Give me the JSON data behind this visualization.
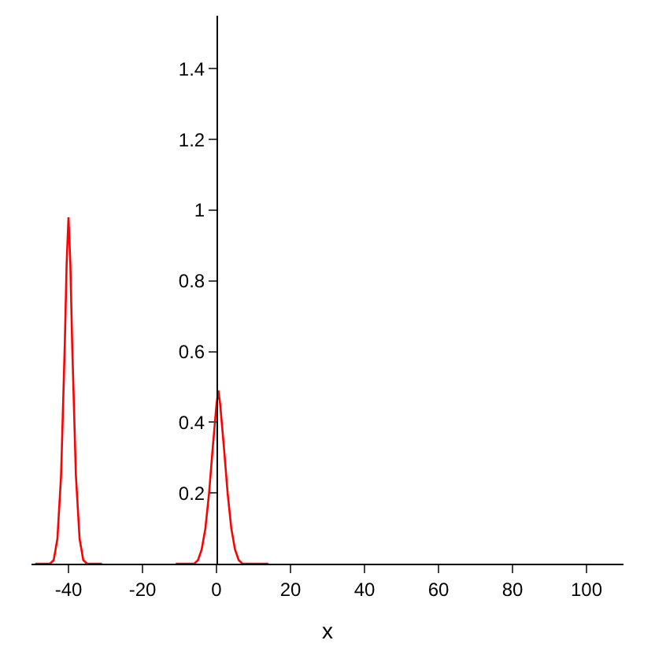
{
  "chart_data": {
    "type": "line",
    "xlabel": "x",
    "x": [
      -49,
      -45,
      -44,
      -43,
      -42,
      -41,
      -40.5,
      -40,
      -39.5,
      -39,
      -38,
      -37,
      -36,
      -35,
      -31,
      -20,
      -11,
      -6,
      -5,
      -4,
      -3,
      -2,
      -1,
      0,
      0.5,
      1,
      2,
      3,
      4,
      5,
      6,
      7,
      14
    ],
    "series": [
      {
        "color": "#ff0000",
        "values": [
          0,
          0,
          0.01,
          0.07,
          0.25,
          0.62,
          0.85,
          0.98,
          0.85,
          0.62,
          0.25,
          0.07,
          0.01,
          0,
          0,
          null,
          0,
          0,
          0.01,
          0.04,
          0.1,
          0.2,
          0.33,
          0.45,
          0.49,
          0.45,
          0.33,
          0.2,
          0.1,
          0.04,
          0.01,
          0,
          0
        ]
      }
    ],
    "xlim": [
      -50,
      110
    ],
    "ylim": [
      0,
      1.55
    ],
    "xticks": [
      -40,
      -20,
      0,
      20,
      40,
      60,
      80,
      100
    ],
    "yticks": [
      0.2,
      0.4,
      0.6,
      0.8,
      1,
      1.2,
      1.4
    ],
    "marker": "none",
    "line_style": "solid"
  }
}
